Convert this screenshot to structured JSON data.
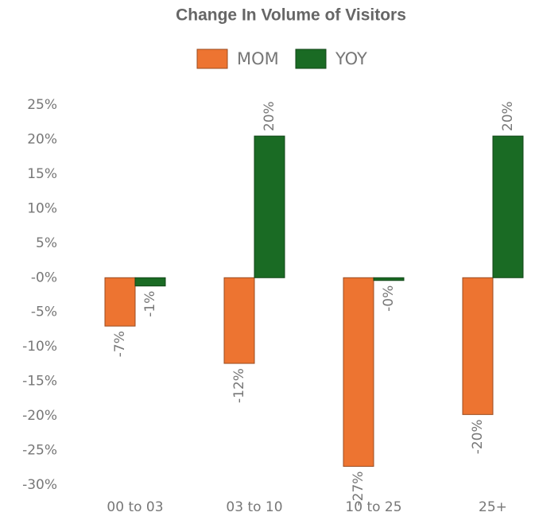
{
  "chart_data": {
    "type": "bar",
    "title": "Change In Volume of Visitors",
    "categories": [
      "00 to 03",
      "03 to 10",
      "10 to 25",
      "25+"
    ],
    "series": [
      {
        "name": "MOM",
        "color": "#ed7431",
        "values": [
          -7.0,
          -12.4,
          -27.3,
          -19.8
        ],
        "value_labels": [
          "-7%",
          "-12%",
          "-27%",
          "-20%"
        ]
      },
      {
        "name": "YOY",
        "color": "#1a6b24",
        "values": [
          -1.2,
          20.5,
          -0.4,
          20.5
        ],
        "value_labels": [
          "-1%",
          "20%",
          "-0%",
          "20%"
        ]
      }
    ],
    "ylim": [
      -30,
      25
    ],
    "yticks": [
      {
        "value": -30,
        "label": "-30%"
      },
      {
        "value": -25,
        "label": "-25%"
      },
      {
        "value": -20,
        "label": "-20%"
      },
      {
        "value": -15,
        "label": "-15%"
      },
      {
        "value": -10,
        "label": "-10%"
      },
      {
        "value": -5,
        "label": "-5%"
      },
      {
        "value": 0,
        "label": "-0%"
      },
      {
        "value": 5,
        "label": "5%"
      },
      {
        "value": 10,
        "label": "10%"
      },
      {
        "value": 15,
        "label": "15%"
      },
      {
        "value": 20,
        "label": "20%"
      },
      {
        "value": 25,
        "label": "25%"
      }
    ],
    "legend": "top",
    "grid": false
  }
}
